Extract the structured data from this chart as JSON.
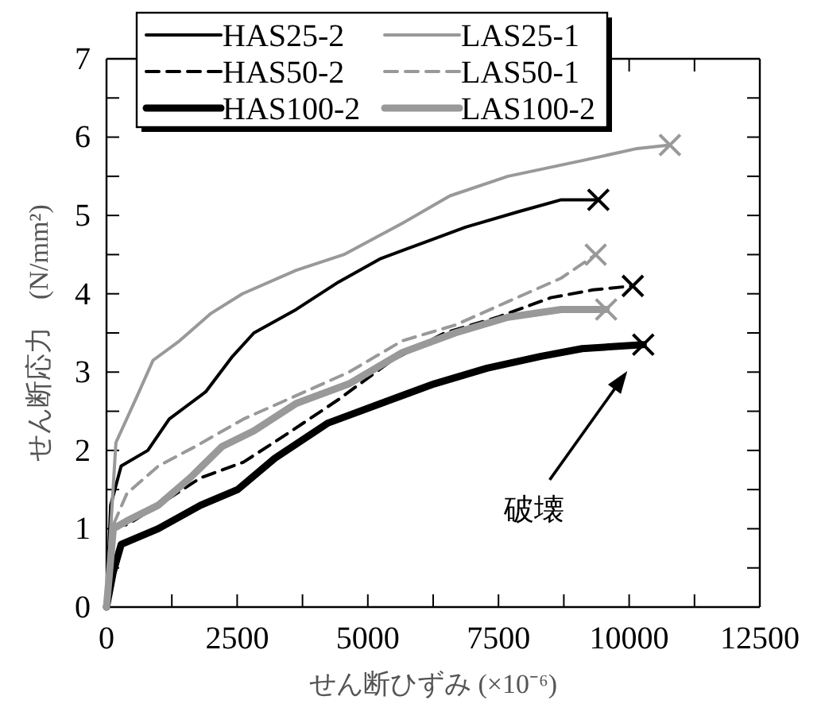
{
  "chart_data": {
    "type": "line",
    "xlabel": "せん断ひずみ (×10⁻⁶)",
    "ylabel": "せん断応力　(N/mm²)",
    "xlim": [
      0,
      12500
    ],
    "ylim": [
      0,
      7
    ],
    "xticks": [
      0,
      {
        "value": 1250,
        "label": null
      },
      2500,
      {
        "value": 3750,
        "label": null
      },
      5000,
      {
        "value": 6250,
        "label": null
      },
      7500,
      {
        "value": 8750,
        "label": null
      },
      10000,
      {
        "value": 11250,
        "label": null
      },
      12500
    ],
    "yticks": [
      0,
      {
        "value": 0.5,
        "label": null
      },
      1,
      {
        "value": 1.5,
        "label": null
      },
      2,
      {
        "value": 2.5,
        "label": null
      },
      3,
      {
        "value": 3.5,
        "label": null
      },
      4,
      {
        "value": 4.5,
        "label": null
      },
      5,
      {
        "value": 5.5,
        "label": null
      },
      6,
      {
        "value": 6.5,
        "label": null
      },
      7
    ],
    "grid": false,
    "legend": "top left",
    "marker": "none",
    "series": [
      {
        "name": "HAS25-2",
        "color": "#000000",
        "line_style": "solid",
        "x": [
          0,
          80,
          280,
          790,
          1200,
          1900,
          2410,
          2820,
          3630,
          4440,
          5250,
          6060,
          6870,
          7890,
          8700,
          9410
        ],
        "values": [
          0,
          1.3,
          1.8,
          2.0,
          2.4,
          2.75,
          3.2,
          3.5,
          3.8,
          4.15,
          4.45,
          4.65,
          4.85,
          5.05,
          5.2,
          5.2
        ]
      },
      {
        "name": "LAS25-1",
        "color": "#999999",
        "line_style": "solid",
        "x": [
          0,
          80,
          180,
          590,
          890,
          1400,
          2000,
          2600,
          3630,
          4540,
          5660,
          6570,
          7680,
          9100,
          10120,
          10780
        ],
        "values": [
          0,
          1.0,
          2.1,
          2.7,
          3.15,
          3.4,
          3.75,
          4.0,
          4.3,
          4.5,
          4.9,
          5.25,
          5.5,
          5.7,
          5.85,
          5.9
        ]
      },
      {
        "name": "HAS50-2",
        "color": "#000000",
        "line_style": "dashed",
        "x": [
          0,
          130,
          390,
          990,
          1800,
          2620,
          3430,
          4440,
          5460,
          6470,
          7480,
          8500,
          9310,
          10070
        ],
        "values": [
          0,
          1.05,
          1.05,
          1.3,
          1.65,
          1.85,
          2.2,
          2.65,
          3.15,
          3.5,
          3.7,
          3.95,
          4.05,
          4.1
        ]
      },
      {
        "name": "LAS50-1",
        "color": "#999999",
        "line_style": "dashed",
        "x": [
          0,
          130,
          390,
          990,
          1700,
          2620,
          3630,
          4640,
          5660,
          6670,
          7680,
          8700,
          9360
        ],
        "values": [
          0,
          1.05,
          1.45,
          1.8,
          2.05,
          2.4,
          2.7,
          3.0,
          3.4,
          3.6,
          3.9,
          4.2,
          4.5
        ]
      },
      {
        "name": "HAS100-2",
        "color": "#000000",
        "line_style": "solid",
        "x": [
          0,
          130,
          280,
          990,
          1800,
          2510,
          3220,
          4240,
          5250,
          6270,
          7280,
          8300,
          9100,
          10270
        ],
        "values": [
          0,
          0.45,
          0.8,
          1.0,
          1.3,
          1.5,
          1.9,
          2.35,
          2.6,
          2.85,
          3.05,
          3.2,
          3.3,
          3.35
        ]
      },
      {
        "name": "LAS100-2",
        "color": "#999999",
        "line_style": "solid",
        "x": [
          0,
          130,
          390,
          990,
          1600,
          2210,
          2820,
          3630,
          4640,
          5660,
          6670,
          7680,
          8700,
          9560
        ],
        "values": [
          0,
          1.0,
          1.1,
          1.3,
          1.65,
          2.05,
          2.25,
          2.6,
          2.85,
          3.25,
          3.5,
          3.7,
          3.8,
          3.8
        ]
      },
      {
        "type": "scatter",
        "marker": "cross",
        "x": [
          9410,
          10780,
          10070,
          9360,
          10270,
          9560
        ],
        "values": [
          5.2,
          5.9,
          4.1,
          4.5,
          3.35,
          3.8
        ],
        "colors": [
          "#000000",
          "#999999",
          "#000000",
          "#999999",
          "#000000",
          "#999999"
        ]
      }
    ],
    "annotations": [
      "破壊"
    ]
  }
}
